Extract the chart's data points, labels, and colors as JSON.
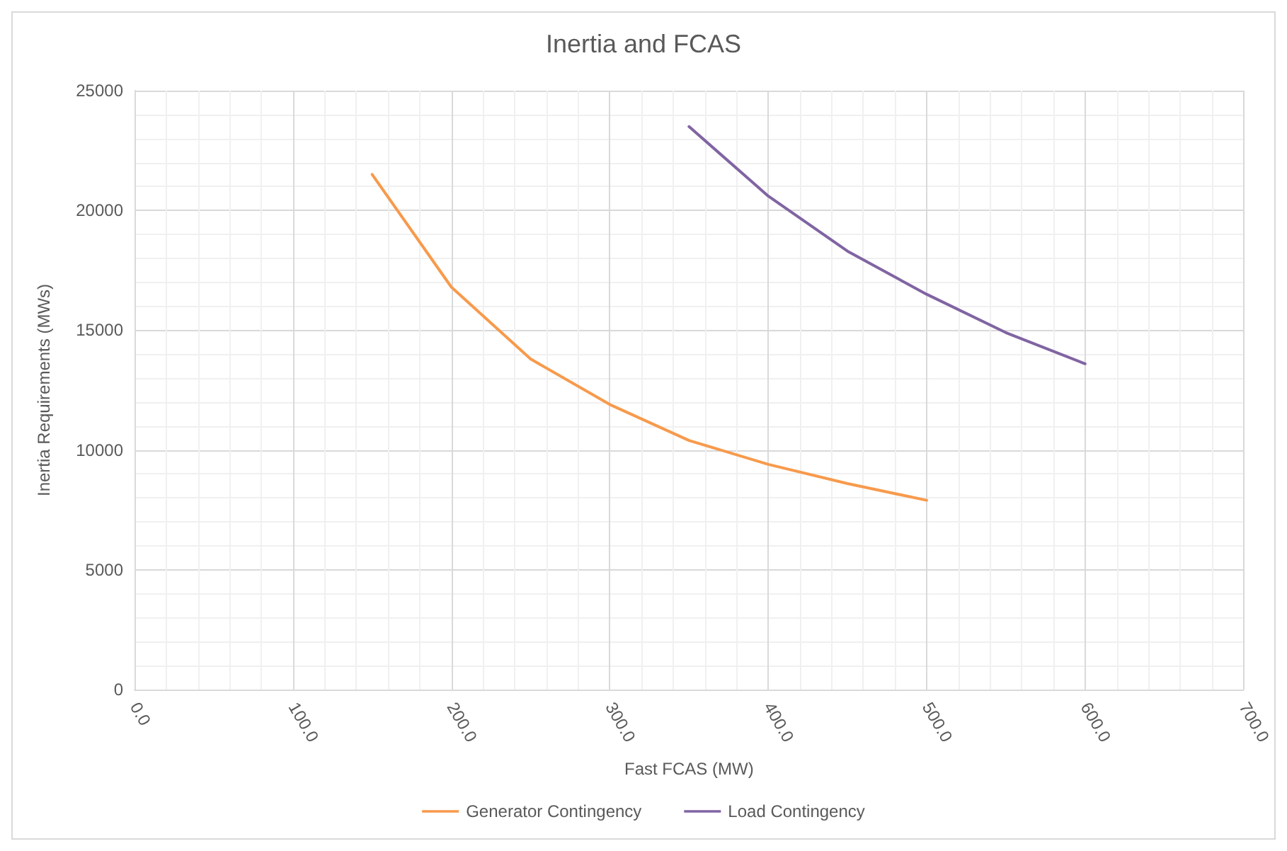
{
  "chart_data": {
    "type": "line",
    "title": "Inertia and FCAS",
    "xlabel": "Fast FCAS (MW)",
    "ylabel": "Inertia Requirements (MWs)",
    "series": [
      {
        "name": "Generator Contingency",
        "color": "#f79a4c",
        "x": [
          150,
          200,
          250,
          300,
          350,
          400,
          450,
          500
        ],
        "values": [
          21500,
          16800,
          13800,
          11900,
          10400,
          9400,
          8600,
          7900
        ]
      },
      {
        "name": "Load Contingency",
        "color": "#8064a2",
        "x": [
          350,
          400,
          450,
          500,
          550,
          600
        ],
        "values": [
          23500,
          20600,
          18300,
          16500,
          14900,
          13600
        ]
      }
    ],
    "xlim": [
      0,
      700
    ],
    "xticks": [
      {
        "value": 0,
        "label": "0.0"
      },
      {
        "value": 100,
        "label": "100.0"
      },
      {
        "value": 200,
        "label": "200.0"
      },
      {
        "value": 300,
        "label": "300.0"
      },
      {
        "value": 400,
        "label": "400.0"
      },
      {
        "value": 500,
        "label": "500.0"
      },
      {
        "value": 600,
        "label": "600.0"
      },
      {
        "value": 700,
        "label": "700.0"
      }
    ],
    "ylim": [
      0,
      25000
    ],
    "yticks": [
      0,
      5000,
      10000,
      15000,
      20000,
      25000
    ],
    "grid": true,
    "legend": "bottom",
    "marker": "none",
    "line_style": "solid"
  }
}
